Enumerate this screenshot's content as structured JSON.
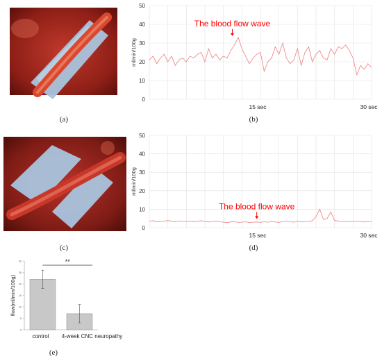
{
  "panels": {
    "a": "(a)",
    "b": "(b)",
    "c": "(c)",
    "d": "(d)",
    "e": "(e)"
  },
  "colors": {
    "trace": "#f08a8a",
    "annotation": "#ff0000",
    "grid": "#e2e2e2",
    "bar": "#c8c8c8",
    "tissue": "#a52a1e",
    "silicone": "#a9c4de"
  },
  "chart_data": [
    {
      "type": "line",
      "panel": "b",
      "ylabel": "ml/min/100g",
      "ylim": [
        0,
        50
      ],
      "yticks": [
        "0",
        "10",
        "20",
        "30",
        "40",
        "50"
      ],
      "xlim": [
        0,
        30
      ],
      "xticks": [
        {
          "x": 15,
          "label": "15 sec"
        },
        {
          "x": 30,
          "label": "30 sec"
        }
      ],
      "annotation": {
        "text": "The blood flow wave",
        "x": 11.2,
        "y": 33
      },
      "x": [
        0,
        0.5,
        1,
        1.5,
        2,
        2.5,
        3,
        3.5,
        4,
        4.5,
        5,
        5.5,
        6,
        6.5,
        7,
        7.5,
        8,
        8.5,
        9,
        9.5,
        10,
        10.5,
        11,
        11.5,
        12,
        12.5,
        13,
        13.5,
        14,
        14.5,
        15,
        15.5,
        16,
        16.5,
        17,
        17.5,
        18,
        18.5,
        19,
        19.5,
        20,
        20.5,
        21,
        21.5,
        22,
        22.5,
        23,
        23.5,
        24,
        24.5,
        25,
        25.5,
        26,
        26.5,
        27,
        27.5,
        28,
        28.5,
        29,
        29.5,
        30
      ],
      "y": [
        21,
        23,
        19,
        22,
        24,
        20,
        23,
        18,
        21,
        22,
        20,
        23,
        22,
        24,
        25,
        20,
        27,
        22,
        24,
        21,
        23,
        22,
        26,
        29,
        33,
        27,
        23,
        19,
        22,
        24,
        25,
        15,
        20,
        22,
        28,
        24,
        30,
        22,
        19,
        21,
        27,
        18,
        25,
        28,
        20,
        24,
        26,
        22,
        21,
        27,
        24,
        28,
        27,
        29,
        26,
        22,
        13,
        18,
        16,
        19,
        17
      ]
    },
    {
      "type": "line",
      "panel": "d",
      "ylabel": "ml/min/100g",
      "ylim": [
        0,
        50
      ],
      "yticks": [
        "0",
        "10",
        "20",
        "30",
        "40",
        "50"
      ],
      "xlim": [
        0,
        30
      ],
      "xticks": [
        {
          "x": 15,
          "label": "15 sec"
        },
        {
          "x": 30,
          "label": "30 sec"
        }
      ],
      "annotation": {
        "text": "The blood flow wave",
        "x": 14.5,
        "y": 4
      },
      "x": [
        0,
        0.5,
        1,
        1.5,
        2,
        2.5,
        3,
        3.5,
        4,
        4.5,
        5,
        5.5,
        6,
        6.5,
        7,
        7.5,
        8,
        8.5,
        9,
        9.5,
        10,
        10.5,
        11,
        11.5,
        12,
        12.5,
        13,
        13.5,
        14,
        14.5,
        15,
        15.5,
        16,
        16.5,
        17,
        17.5,
        18,
        18.5,
        19,
        19.5,
        20,
        20.5,
        21,
        21.5,
        22,
        22.5,
        23,
        23.5,
        24,
        24.5,
        25,
        25.5,
        26,
        26.5,
        27,
        27.5,
        28,
        28.5,
        29,
        29.5,
        30
      ],
      "y": [
        3.5,
        3.8,
        3.2,
        3.6,
        3.4,
        3.9,
        3.5,
        3.2,
        3.7,
        3.4,
        3.3,
        3.6,
        3.2,
        3.5,
        3.8,
        3.3,
        3.1,
        3.4,
        3.6,
        3.2,
        3,
        2.8,
        3.1,
        3.3,
        2.9,
        3,
        3.2,
        2.8,
        3,
        3.1,
        2.9,
        3.2,
        3,
        3.4,
        3.1,
        2.9,
        3.3,
        3.5,
        3.2,
        3,
        3.6,
        3.1,
        3.3,
        3.5,
        3.8,
        6,
        10,
        4.5,
        5,
        8.5,
        4,
        3.6,
        3.4,
        3.5,
        3.2,
        3.4,
        3.6,
        3.3,
        3.1,
        3.4,
        3.2
      ]
    },
    {
      "type": "bar",
      "panel": "e",
      "ylabel": "flow(ml/min/100g)",
      "ylim": [
        0,
        30
      ],
      "yticks": [
        "0",
        "5",
        "10",
        "15",
        "20",
        "25",
        "30"
      ],
      "categories": [
        "control",
        "4-week CNC neuropathy"
      ],
      "values": [
        22,
        7
      ],
      "errors": [
        4,
        4
      ],
      "significance": "**"
    }
  ]
}
